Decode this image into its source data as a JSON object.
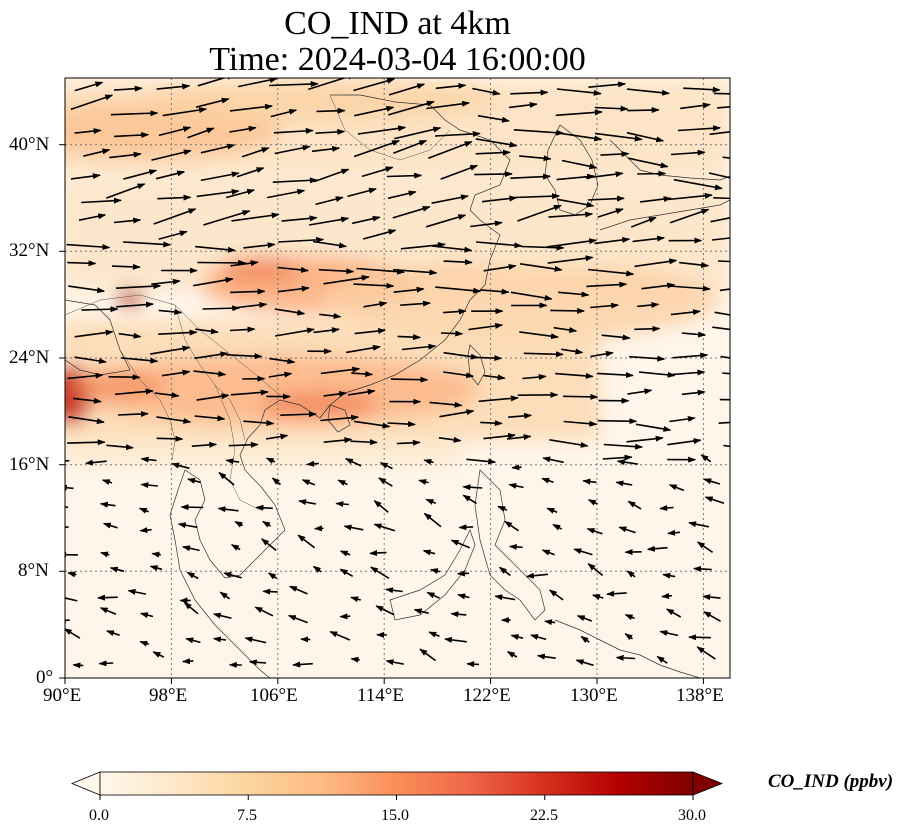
{
  "title": {
    "line1": "CO_IND at 4km",
    "line2": "Time: 2024-03-04 16:00:00"
  },
  "map": {
    "projection": "PlateCarree",
    "lon_range": [
      90,
      140
    ],
    "lat_range": [
      0,
      45
    ],
    "gridlines": "dotted gray",
    "field": "CO_IND",
    "level": "4km",
    "overlay": "wind vectors (arrows)",
    "x_ticks": [
      "90°E",
      "98°E",
      "106°E",
      "114°E",
      "122°E",
      "130°E",
      "138°E"
    ],
    "y_ticks": [
      "0°",
      "8°N",
      "16°N",
      "24°N",
      "32°N",
      "40°N"
    ]
  },
  "colorbar": {
    "colormap": "OrRd",
    "label": "CO_IND (ppbv)",
    "range": [
      0,
      30
    ],
    "extend": "both",
    "ticks": [
      "0.0",
      "7.5",
      "15.0",
      "22.5",
      "30.0"
    ],
    "colors": [
      "#fff7ec",
      "#fee8c8",
      "#fdd49e",
      "#fdbb84",
      "#fc8d59",
      "#ef6548",
      "#d7301f",
      "#b30000",
      "#7f0000"
    ]
  }
}
